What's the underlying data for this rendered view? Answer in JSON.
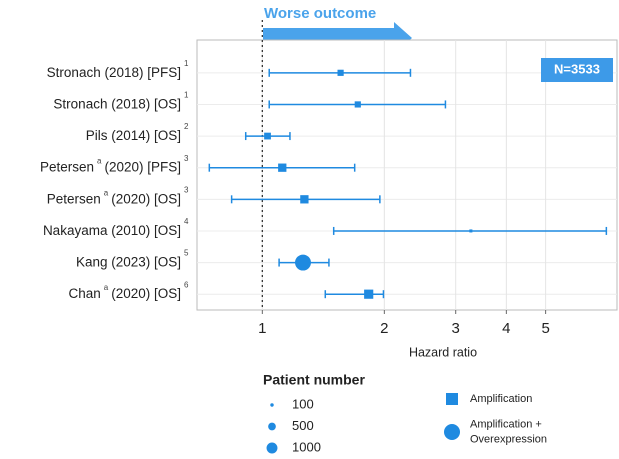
{
  "chart_data": {
    "type": "forest",
    "header": "Worse outcome",
    "total_label": "N=3533",
    "x_label": "Hazard ratio",
    "log_x": true,
    "grid": true,
    "reference_line": 1,
    "xlim": [
      0.69,
      7.5
    ],
    "xticks": [
      1,
      2,
      3,
      4,
      5
    ],
    "color": "#1f8ae0",
    "studies": [
      {
        "name": "Stronach (2018) [PFS]",
        "ref": "1",
        "hr": 1.56,
        "lo": 1.04,
        "hi": 2.32,
        "n": 250,
        "marker": "square"
      },
      {
        "name": "Stronach (2018) [OS]",
        "ref": "1",
        "hr": 1.72,
        "lo": 1.04,
        "hi": 2.83,
        "n": 250,
        "marker": "square"
      },
      {
        "name": "Pils (2014) [OS]",
        "ref": "2",
        "hr": 1.03,
        "lo": 0.91,
        "hi": 1.17,
        "n": 300,
        "marker": "square"
      },
      {
        "name": "Petersen",
        "name_sup": "a",
        "name_rest": "(2020) [PFS]",
        "ref": "3",
        "hr": 1.12,
        "lo": 0.74,
        "hi": 1.69,
        "n": 450,
        "marker": "square"
      },
      {
        "name": "Petersen",
        "name_sup": "a",
        "name_rest": "(2020) [OS]",
        "ref": "3",
        "hr": 1.27,
        "lo": 0.84,
        "hi": 1.95,
        "n": 450,
        "marker": "square"
      },
      {
        "name": "Nakayama (2010) [OS]",
        "ref": "4",
        "hr": 3.27,
        "lo": 1.5,
        "hi": 7.06,
        "n": 60,
        "marker": "square"
      },
      {
        "name": "Kang (2023) [OS]",
        "ref": "5",
        "hr": 1.26,
        "lo": 1.1,
        "hi": 1.46,
        "n": 1200,
        "marker": "circle"
      },
      {
        "name": "Chan",
        "name_sup": "a",
        "name_rest": "(2020) [OS]",
        "ref": "6",
        "hr": 1.83,
        "lo": 1.43,
        "hi": 1.99,
        "n": 550,
        "marker": "square"
      }
    ],
    "size_legend": {
      "title": "Patient number",
      "sizes": [
        100,
        500,
        1000
      ]
    },
    "shape_legend": [
      {
        "marker": "square",
        "lines": [
          "Amplification"
        ]
      },
      {
        "marker": "circle",
        "lines": [
          "Amplification +",
          "Overexpression"
        ]
      }
    ]
  }
}
